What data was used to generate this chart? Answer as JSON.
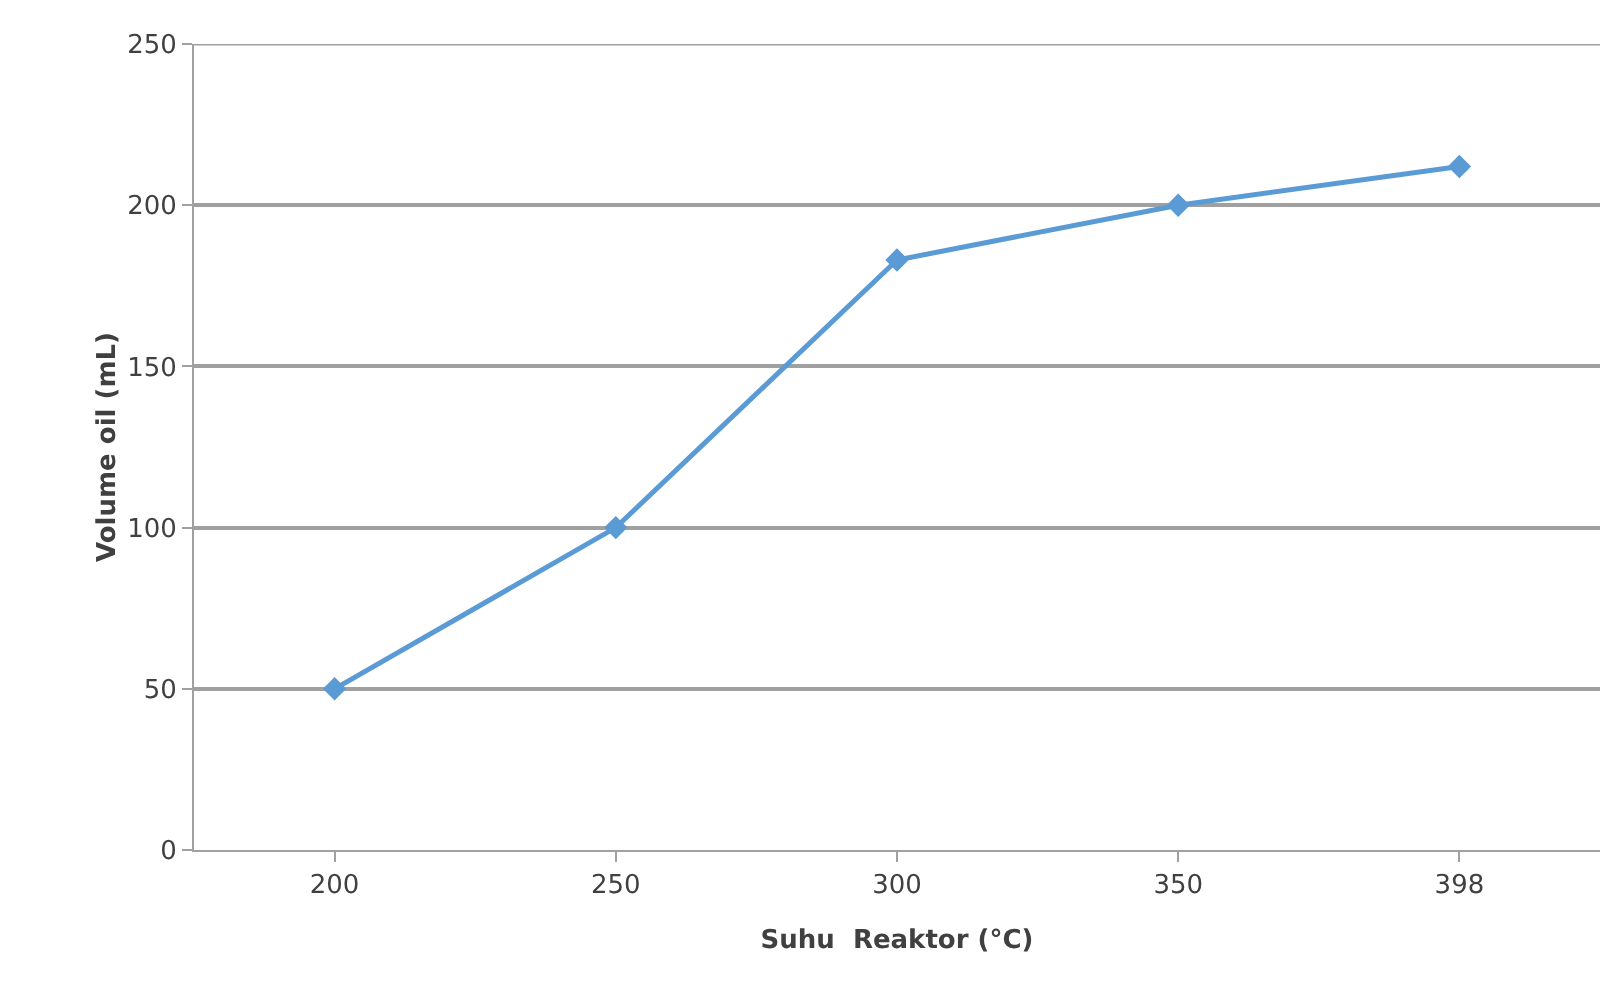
{
  "chart_data": {
    "type": "line",
    "xlabel": "Suhu  Reaktor (°C)",
    "ylabel": "Volume oil (mL)",
    "categories": [
      "200",
      "250",
      "300",
      "350",
      "398"
    ],
    "series": [
      {
        "color": "#5b9bd5",
        "values": [
          50,
          100,
          183,
          200,
          212
        ]
      }
    ],
    "ylim": [
      0,
      250
    ],
    "yticks": [
      0,
      50,
      100,
      150,
      200,
      250
    ],
    "grid": "y",
    "marker": "diamond",
    "line_style": "solid"
  }
}
